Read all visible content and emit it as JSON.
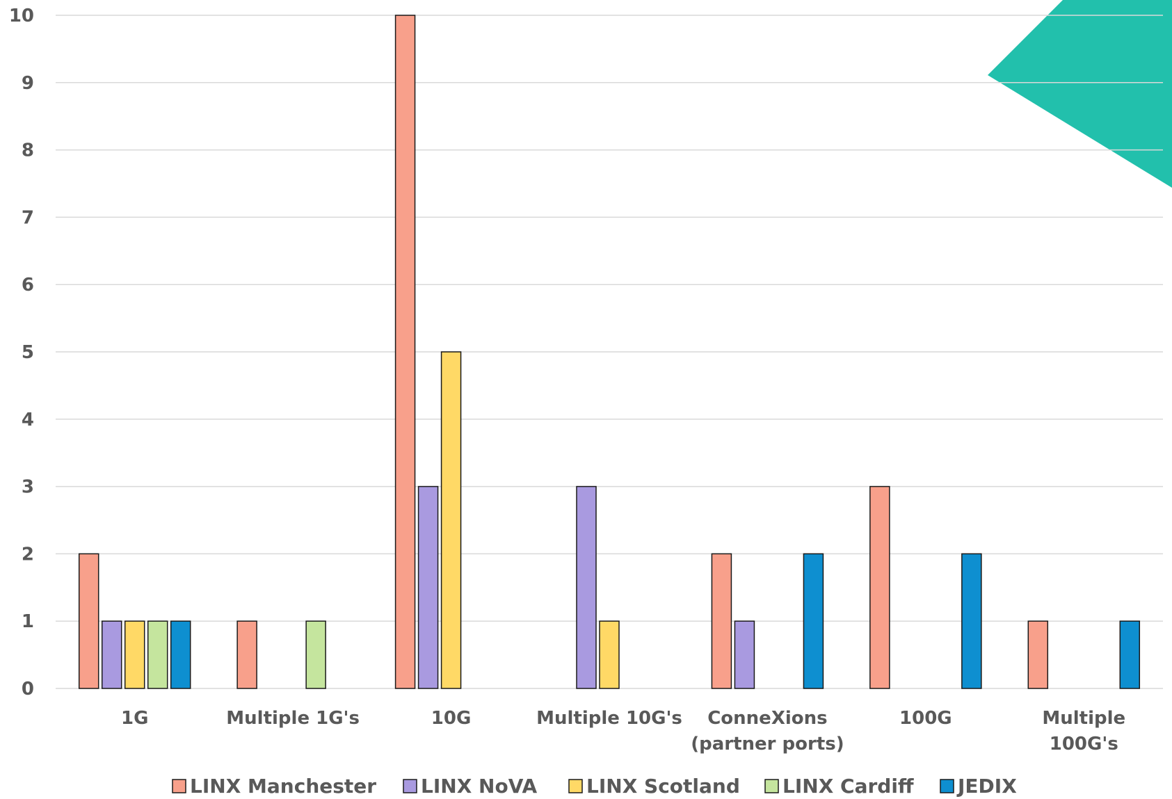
{
  "chart_data": {
    "type": "bar",
    "title": "",
    "xlabel": "",
    "ylabel": "",
    "ylim": [
      0,
      10
    ],
    "yticks": [
      0,
      1,
      2,
      3,
      4,
      5,
      6,
      7,
      8,
      9,
      10
    ],
    "grid": true,
    "legend_position": "bottom",
    "categories": [
      [
        "1G"
      ],
      [
        "Multiple 1G's"
      ],
      [
        "10G"
      ],
      [
        "Multiple 10G's"
      ],
      [
        "ConneXions",
        "(partner ports)"
      ],
      [
        "100G"
      ],
      [
        "Multiple",
        "100G's"
      ]
    ],
    "series": [
      {
        "name": "LINX Manchester",
        "color": "#F8A08B",
        "values": [
          2,
          1,
          10,
          0,
          2,
          3,
          1
        ]
      },
      {
        "name": "LINX NoVA",
        "color": "#A99AE0",
        "values": [
          1,
          0,
          3,
          3,
          1,
          0,
          0
        ]
      },
      {
        "name": "LINX Scotland",
        "color": "#FFD966",
        "values": [
          1,
          0,
          5,
          1,
          0,
          0,
          0
        ]
      },
      {
        "name": "LINX Cardiff",
        "color": "#C5E59E",
        "values": [
          1,
          1,
          0,
          0,
          0,
          0,
          0
        ]
      },
      {
        "name": "JEDIX",
        "color": "#0E8FD0",
        "values": [
          1,
          0,
          0,
          0,
          2,
          2,
          1
        ]
      }
    ]
  },
  "decoration": {
    "accent_color": "#22C0AC"
  }
}
